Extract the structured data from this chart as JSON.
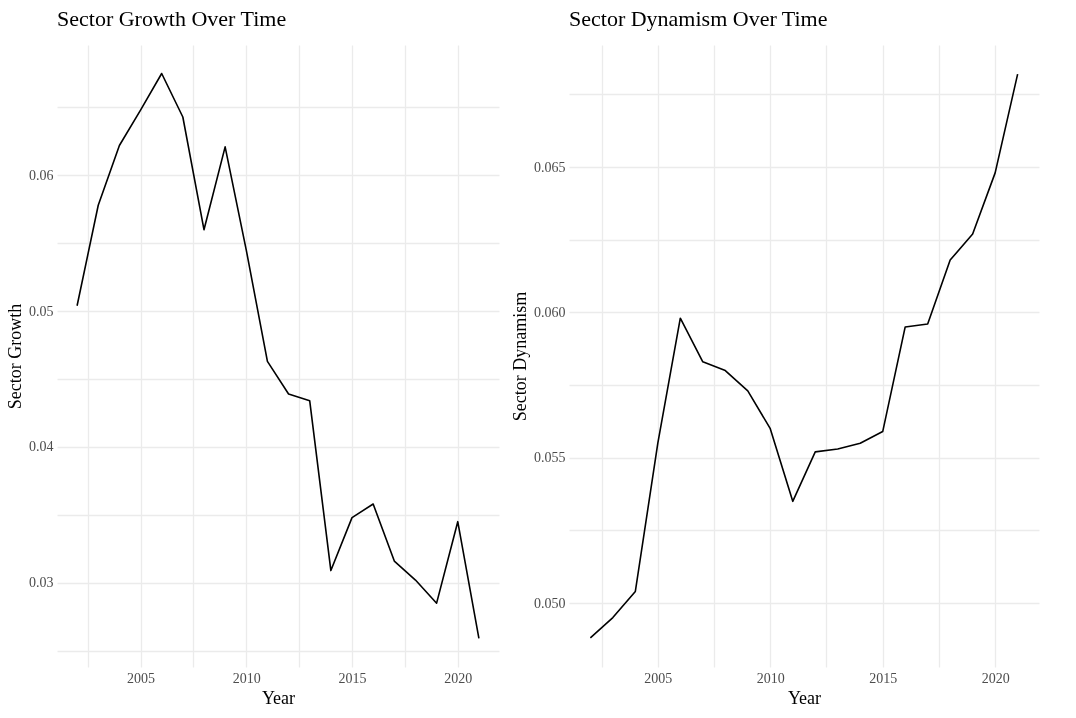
{
  "chart_data": [
    {
      "type": "line",
      "title": "Sector Growth Over Time",
      "xlabel": "Year",
      "ylabel": "Sector Growth",
      "color": "#000000",
      "grid": true,
      "x": [
        2002,
        2003,
        2004,
        2005,
        2006,
        2007,
        2008,
        2009,
        2010,
        2011,
        2012,
        2013,
        2014,
        2015,
        2016,
        2017,
        2018,
        2019,
        2020,
        2021
      ],
      "values": [
        0.0504,
        0.0578,
        0.0622,
        0.0648,
        0.0675,
        0.0643,
        0.056,
        0.0621,
        0.0545,
        0.0463,
        0.0439,
        0.0434,
        0.0309,
        0.0348,
        0.0358,
        0.0316,
        0.0302,
        0.0285,
        0.0345,
        0.0259
      ],
      "xlim": [
        2001.05,
        2021.95
      ],
      "xticks": [
        {
          "value": 2002.5,
          "label": null
        },
        2005,
        {
          "value": 2007.5,
          "label": null
        },
        2010,
        {
          "value": 2012.5,
          "label": null
        },
        2015,
        {
          "value": 2017.5,
          "label": null
        },
        2020
      ],
      "ylim": [
        0.0238,
        0.0696
      ],
      "yticks": [
        {
          "value": 0.025,
          "label": null
        },
        0.03,
        {
          "value": 0.035,
          "label": null
        },
        0.04,
        {
          "value": 0.045,
          "label": null
        },
        0.05,
        {
          "value": 0.055,
          "label": null
        },
        0.06,
        {
          "value": 0.065,
          "label": null
        }
      ]
    },
    {
      "type": "line",
      "title": "Sector Dynamism Over Time",
      "xlabel": "Year",
      "ylabel": "Sector Dynamism",
      "color": "#000000",
      "grid": true,
      "x": [
        2002,
        2003,
        2004,
        2005,
        2006,
        2007,
        2008,
        2009,
        2010,
        2011,
        2012,
        2013,
        2014,
        2015,
        2016,
        2017,
        2018,
        2019,
        2020,
        2021
      ],
      "values": [
        0.0488,
        0.0495,
        0.0504,
        0.0555,
        0.0598,
        0.0583,
        0.058,
        0.0573,
        0.056,
        0.0535,
        0.0552,
        0.0553,
        0.0555,
        0.0559,
        0.0595,
        0.0596,
        0.0618,
        0.0627,
        0.0648,
        0.0682
      ],
      "xlim": [
        2001.05,
        2021.95
      ],
      "xticks": [
        {
          "value": 2002.5,
          "label": null
        },
        2005,
        {
          "value": 2007.5,
          "label": null
        },
        2010,
        {
          "value": 2012.5,
          "label": null
        },
        2015,
        {
          "value": 2017.5,
          "label": null
        },
        2020
      ],
      "ylim": [
        0.0478,
        0.0692
      ],
      "yticks": [
        {
          "value": 0.05,
          "label": "0.050"
        },
        {
          "value": 0.0525,
          "label": null
        },
        {
          "value": 0.055,
          "label": "0.055"
        },
        {
          "value": 0.0575,
          "label": null
        },
        {
          "value": 0.06,
          "label": "0.060"
        },
        {
          "value": 0.0625,
          "label": null
        },
        {
          "value": 0.065,
          "label": "0.065"
        },
        {
          "value": 0.0675,
          "label": null
        }
      ]
    }
  ]
}
